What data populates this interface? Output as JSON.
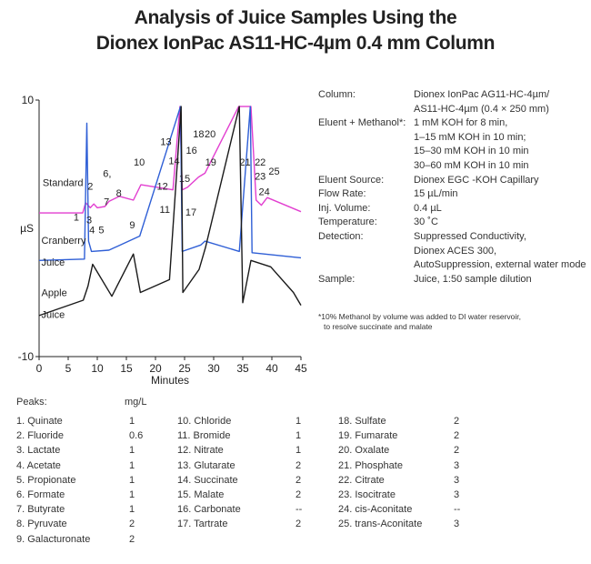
{
  "title_line1": "Analysis of Juice Samples Using the",
  "title_line2": "Dionex IonPac AS11-HC-4µm 0.4 mm Column",
  "chart_data": {
    "type": "line",
    "xlabel": "Minutes",
    "ylabel": "µS",
    "xlim": [
      0,
      45
    ],
    "ylim": [
      -10,
      10
    ],
    "x_ticks": [
      "0",
      "5",
      "10",
      "15",
      "20",
      "25",
      "30",
      "35",
      "40",
      "45"
    ],
    "y_ticks": [
      "10",
      "-10"
    ],
    "series": [
      {
        "name": "Standard",
        "color": "#e23fd0",
        "baseline": 1.2,
        "points": [
          [
            0.0,
            1.2
          ],
          [
            7.5,
            1.2
          ],
          [
            8.0,
            2.0
          ],
          [
            8.8,
            1.6
          ],
          [
            9.4,
            1.9
          ],
          [
            10.0,
            1.6
          ],
          [
            11.3,
            1.7
          ],
          [
            12.0,
            2.1
          ],
          [
            13.8,
            2.5
          ],
          [
            16.2,
            2.2
          ],
          [
            17.5,
            3.4
          ],
          [
            23.0,
            3.0
          ],
          [
            24.2,
            9.5
          ],
          [
            24.6,
            3.0
          ],
          [
            25.5,
            3.2
          ],
          [
            27.4,
            4.0
          ],
          [
            28.5,
            4.3
          ],
          [
            34.3,
            9.5
          ],
          [
            36.4,
            9.5
          ],
          [
            37.3,
            2.2
          ],
          [
            38.2,
            1.8
          ],
          [
            39.2,
            2.4
          ],
          [
            45.0,
            1.3
          ]
        ]
      },
      {
        "name": "Cranberry Juice",
        "color": "#2f5fd6",
        "baseline": -2.4,
        "points": [
          [
            0.0,
            -2.5
          ],
          [
            7.8,
            -2.4
          ],
          [
            8.2,
            8.2
          ],
          [
            8.5,
            -1.0
          ],
          [
            9.0,
            -1.8
          ],
          [
            12.0,
            -1.7
          ],
          [
            17.3,
            -0.6
          ],
          [
            24.3,
            9.5
          ],
          [
            24.6,
            -1.8
          ],
          [
            27.8,
            -1.3
          ],
          [
            28.5,
            -1.0
          ],
          [
            34.4,
            -1.8
          ],
          [
            36.3,
            9.5
          ],
          [
            36.6,
            -1.9
          ],
          [
            45.0,
            -2.3
          ]
        ]
      },
      {
        "name": "Apple Juice",
        "color": "#1a1a1a",
        "baseline": -6.8,
        "points": [
          [
            0.0,
            -6.8
          ],
          [
            7.6,
            -5.6
          ],
          [
            8.4,
            -4.5
          ],
          [
            9.2,
            -2.8
          ],
          [
            12.5,
            -5.3
          ],
          [
            16.2,
            -2.0
          ],
          [
            17.4,
            -5.0
          ],
          [
            22.4,
            -4.0
          ],
          [
            24.4,
            9.5
          ],
          [
            24.7,
            -5.0
          ],
          [
            27.5,
            -3.2
          ],
          [
            28.6,
            -1.5
          ],
          [
            34.4,
            9.5
          ],
          [
            35.0,
            -5.8
          ],
          [
            36.4,
            -2.5
          ],
          [
            39.8,
            -3.0
          ],
          [
            43.7,
            -5.0
          ],
          [
            45.0,
            -6.0
          ]
        ]
      }
    ],
    "peak_labels": [
      {
        "text": "1",
        "x": 6.4,
        "y": 0.6
      },
      {
        "text": "2",
        "x": 8.8,
        "y": 3.0
      },
      {
        "text": "3",
        "x": 8.6,
        "y": 0.4
      },
      {
        "text": "4",
        "x": 9.1,
        "y": -0.4
      },
      {
        "text": "5",
        "x": 10.7,
        "y": -0.4
      },
      {
        "text": "6,",
        "x": 11.7,
        "y": 4.0
      },
      {
        "text": "7",
        "x": 11.6,
        "y": 1.8
      },
      {
        "text": "8",
        "x": 13.7,
        "y": 2.5
      },
      {
        "text": "9",
        "x": 16.0,
        "y": 0.0
      },
      {
        "text": "10",
        "x": 17.2,
        "y": 4.9
      },
      {
        "text": "11",
        "x": 21.6,
        "y": 1.2
      },
      {
        "text": "12",
        "x": 21.2,
        "y": 3.0
      },
      {
        "text": "13",
        "x": 21.8,
        "y": 6.5
      },
      {
        "text": "14",
        "x": 23.2,
        "y": 5.0
      },
      {
        "text": "15",
        "x": 25.0,
        "y": 3.6
      },
      {
        "text": "16",
        "x": 26.2,
        "y": 5.8
      },
      {
        "text": "17",
        "x": 26.1,
        "y": 1.0
      },
      {
        "text": "18",
        "x": 27.4,
        "y": 7.1
      },
      {
        "text": "20",
        "x": 29.4,
        "y": 7.1
      },
      {
        "text": "19",
        "x": 29.5,
        "y": 4.9
      },
      {
        "text": "21",
        "x": 35.4,
        "y": 4.9
      },
      {
        "text": "22",
        "x": 38.0,
        "y": 4.9
      },
      {
        "text": "23",
        "x": 38.0,
        "y": 3.8
      },
      {
        "text": "24",
        "x": 38.7,
        "y": 2.6
      },
      {
        "text": "25",
        "x": 40.4,
        "y": 4.2
      }
    ],
    "trace_labels": [
      {
        "text": "Standard",
        "x": 0.6,
        "y": 3.3
      },
      {
        "text": "Cranberry",
        "x": 0.4,
        "y": -1.2
      },
      {
        "text": "Juice",
        "x": 0.4,
        "y": -2.9
      },
      {
        "text": "Apple",
        "x": 0.4,
        "y": -5.3
      },
      {
        "text": "Juice",
        "x": 0.4,
        "y": -7.0
      }
    ]
  },
  "conditions": [
    {
      "label": "Column:",
      "lines": [
        "Dionex IonPac AG11-HC-4µm/",
        "AS11-HC-4µm (0.4 × 250 mm)"
      ]
    },
    {
      "label": "Eluent + Methanol*:",
      "lines": [
        "1 mM KOH for 8 min,",
        "1–15 mM KOH in 10 min;",
        "15–30 mM KOH in 10 min",
        "30–60 mM KOH in 10 min"
      ]
    },
    {
      "label": "Eluent Source:",
      "lines": [
        "Dionex EGC -KOH Capillary"
      ]
    },
    {
      "label": "Flow Rate:",
      "lines": [
        "15 µL/min"
      ]
    },
    {
      "label": "Inj. Volume:",
      "lines": [
        "0.4 µL"
      ]
    },
    {
      "label": "Temperature:",
      "lines": [
        "30 ˚C"
      ]
    },
    {
      "label": "Detection:",
      "lines": [
        "Suppressed Conductivity,",
        "Dionex ACES 300,",
        "AutoSuppression, external water mode"
      ]
    },
    {
      "label": "Sample:",
      "lines": [
        "Juice, 1:50 sample dilution"
      ]
    }
  ],
  "footnote": [
    "*10% Methanol by volume was added to DI water reservoir,",
    "to resolve succinate and malate"
  ],
  "peaks_header": "Peaks:",
  "peaks_unit": "mg/L",
  "peaks": [
    {
      "name": "1. Quinate",
      "value": "1"
    },
    {
      "name": "2. Fluoride",
      "value": "0.6"
    },
    {
      "name": "3. Lactate",
      "value": "1"
    },
    {
      "name": "4. Acetate",
      "value": "1"
    },
    {
      "name": "5. Propionate",
      "value": "1"
    },
    {
      "name": "6. Formate",
      "value": "1"
    },
    {
      "name": "7. Butyrate",
      "value": "1"
    },
    {
      "name": "8. Pyruvate",
      "value": "2"
    },
    {
      "name": "9. Galacturonate",
      "value": "2"
    },
    {
      "name": "10. Chloride",
      "value": "1"
    },
    {
      "name": "11. Bromide",
      "value": "1"
    },
    {
      "name": "12. Nitrate",
      "value": "1"
    },
    {
      "name": "13. Glutarate",
      "value": "2"
    },
    {
      "name": "14. Succinate",
      "value": "2"
    },
    {
      "name": "15. Malate",
      "value": "2"
    },
    {
      "name": "16. Carbonate",
      "value": "--"
    },
    {
      "name": "17. Tartrate",
      "value": "2"
    },
    {
      "name": "18. Sulfate",
      "value": "2"
    },
    {
      "name": "19. Fumarate",
      "value": "2"
    },
    {
      "name": "20. Oxalate",
      "value": "2"
    },
    {
      "name": "21. Phosphate",
      "value": "3"
    },
    {
      "name": "22. Citrate",
      "value": "3"
    },
    {
      "name": "23. Isocitrate",
      "value": "3"
    },
    {
      "name": "24. cis-Aconitate",
      "value": "--"
    },
    {
      "name": "25. trans-Aconitate",
      "value": "3"
    }
  ]
}
